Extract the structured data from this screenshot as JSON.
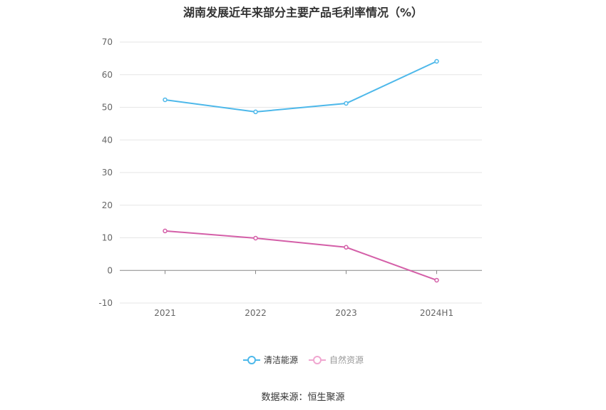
{
  "chart_data": {
    "type": "line",
    "title": "湖南发展近年来部分主要产品毛利率情况（%）",
    "categories": [
      "2021",
      "2022",
      "2023",
      "2024H1"
    ],
    "ylim": [
      -10,
      70
    ],
    "yticks": [
      -10,
      0,
      10,
      20,
      30,
      40,
      50,
      60,
      70
    ],
    "grid": true,
    "legend_position": "bottom",
    "series": [
      {
        "name": "清洁能源",
        "color": "#4db8ea",
        "values": [
          52.3,
          48.6,
          51.2,
          64.1
        ]
      },
      {
        "name": "自然资源",
        "color": "#d45fa8",
        "values": [
          12.1,
          9.9,
          7.1,
          -3.0
        ]
      }
    ]
  },
  "legend_colors": {
    "inactive_text": "#999999",
    "active_text": "#333333",
    "inactive_marker": "#f0a6d0"
  },
  "source": "数据来源：恒生聚源"
}
